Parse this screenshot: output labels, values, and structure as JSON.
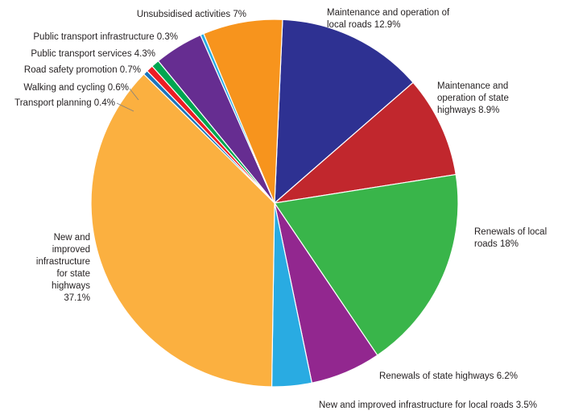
{
  "chart_data": {
    "type": "pie",
    "title": "",
    "legend": "none",
    "slices": [
      {
        "label": "Maintenance and operation of local roads",
        "value": 12.9,
        "color": "#2e3192"
      },
      {
        "label": "Maintenance and operation of state highways",
        "value": 8.9,
        "color": "#c1272d"
      },
      {
        "label": "Renewals of local roads",
        "value": 18,
        "color": "#39b54a"
      },
      {
        "label": "Renewals of state highways",
        "value": 6.2,
        "color": "#92278f"
      },
      {
        "label": "New and improved infrastructure for local roads",
        "value": 3.5,
        "color": "#29abe2"
      },
      {
        "label": "New and improved infrastructure for state highways",
        "value": 37.1,
        "color": "#fbb040"
      },
      {
        "label": "Transport planning",
        "value": 0.4,
        "color": "#1c75bc"
      },
      {
        "label": "Walking and cycling",
        "value": 0.6,
        "color": "#ed1c24"
      },
      {
        "label": "Road safety promotion",
        "value": 0.7,
        "color": "#00a651"
      },
      {
        "label": "Public transport services",
        "value": 4.3,
        "color": "#662d91"
      },
      {
        "label": "Public transport infrastructure",
        "value": 0.3,
        "color": "#29abe2"
      },
      {
        "label": "Unsubsidised activities",
        "value": 7,
        "color": "#f7941d"
      }
    ],
    "slice_labels": [
      [
        "Maintenance and operation of",
        "local roads 12.9%"
      ],
      [
        "Maintenance and",
        "operation of state",
        "highways 8.9%"
      ],
      [
        "Renewals of local",
        "roads 18%"
      ],
      [
        "Renewals of state highways 6.2%"
      ],
      [
        "New and improved infrastructure for local roads 3.5%"
      ],
      [
        "New and",
        "improved",
        "infrastructure",
        "for state",
        "highways",
        "37.1%"
      ],
      [
        "Transport planning 0.4%"
      ],
      [
        "Walking and cycling 0.6%"
      ],
      [
        "Road safety promotion 0.7%"
      ],
      [
        "Public transport services 4.3%"
      ],
      [
        "Public transport infrastructure 0.3%"
      ],
      [
        "Unsubsidised activities 7%"
      ]
    ]
  }
}
